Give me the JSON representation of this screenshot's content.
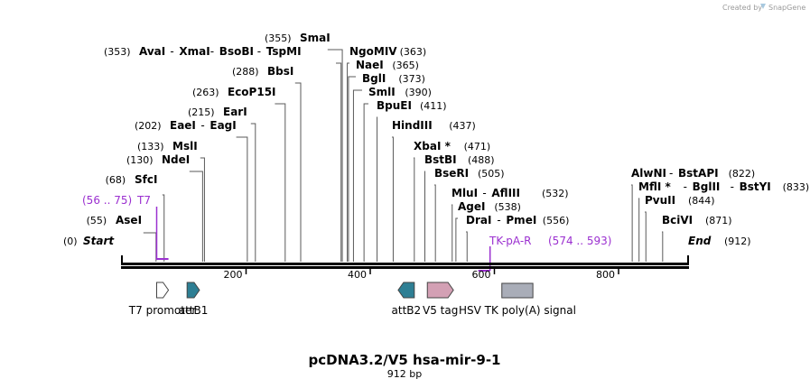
{
  "credit": {
    "prefix": "Created by",
    "brand": "SnapGene"
  },
  "map": {
    "title": "pcDNA3.2/V5 hsa-mir-9-1",
    "length_label": "912 bp",
    "length": 912,
    "start": {
      "label": "Start",
      "pos": "(0)"
    },
    "end": {
      "label": "End",
      "pos": "(912)"
    },
    "ticks": [
      "200",
      "400",
      "600",
      "800"
    ],
    "tick_values": [
      200,
      400,
      600,
      800
    ]
  },
  "sites": [
    {
      "id": "ase",
      "pos": 55,
      "pos_label": "(55)",
      "names": [
        "AseI"
      ],
      "side": "left"
    },
    {
      "id": "sfc",
      "pos": 68,
      "pos_label": "(68)",
      "names": [
        "SfcI"
      ],
      "side": "left"
    },
    {
      "id": "nde",
      "pos": 130,
      "pos_label": "(130)",
      "names": [
        "NdeI"
      ],
      "side": "left"
    },
    {
      "id": "msl",
      "pos": 133,
      "pos_label": "(133)",
      "names": [
        "MslI"
      ],
      "side": "left"
    },
    {
      "id": "eae",
      "pos": 202,
      "pos_label": "(202)",
      "names": [
        "EaeI",
        "EagI"
      ],
      "side": "left"
    },
    {
      "id": "ear",
      "pos": 215,
      "pos_label": "(215)",
      "names": [
        "EarI"
      ],
      "side": "left"
    },
    {
      "id": "ecop",
      "pos": 263,
      "pos_label": "(263)",
      "names": [
        "EcoP15I"
      ],
      "side": "left"
    },
    {
      "id": "bbs",
      "pos": 288,
      "pos_label": "(288)",
      "names": [
        "BbsI"
      ],
      "side": "left"
    },
    {
      "id": "ava",
      "pos": 353,
      "pos_label": "(353)",
      "names": [
        "AvaI",
        "XmaI",
        "BsoBI",
        "TspMI"
      ],
      "side": "left"
    },
    {
      "id": "sma",
      "pos": 355,
      "pos_label": "(355)",
      "names": [
        "SmaI"
      ],
      "side": "left"
    },
    {
      "id": "ngo",
      "pos": 363,
      "pos_label": "(363)",
      "names": [
        "NgoMIV"
      ],
      "side": "right"
    },
    {
      "id": "nae",
      "pos": 365,
      "pos_label": "(365)",
      "names": [
        "NaeI"
      ],
      "side": "right"
    },
    {
      "id": "bgl1",
      "pos": 373,
      "pos_label": "(373)",
      "names": [
        "BglI"
      ],
      "side": "right"
    },
    {
      "id": "sml",
      "pos": 390,
      "pos_label": "(390)",
      "names": [
        "SmlI"
      ],
      "side": "right"
    },
    {
      "id": "bpue",
      "pos": 411,
      "pos_label": "(411)",
      "names": [
        "BpuEI"
      ],
      "side": "right"
    },
    {
      "id": "hind",
      "pos": 437,
      "pos_label": "(437)",
      "names": [
        "HindIII"
      ],
      "side": "right"
    },
    {
      "id": "xba",
      "pos": 471,
      "pos_label": "(471)",
      "names": [
        "XbaI *"
      ],
      "side": "right"
    },
    {
      "id": "bstbi",
      "pos": 488,
      "pos_label": "(488)",
      "names": [
        "BstBI"
      ],
      "side": "right"
    },
    {
      "id": "bseri",
      "pos": 505,
      "pos_label": "(505)",
      "names": [
        "BseRI"
      ],
      "side": "right"
    },
    {
      "id": "mlu",
      "pos": 532,
      "pos_label": "(532)",
      "names": [
        "MluI",
        "AflIII"
      ],
      "side": "right"
    },
    {
      "id": "age",
      "pos": 538,
      "pos_label": "(538)",
      "names": [
        "AgeI"
      ],
      "side": "right"
    },
    {
      "id": "dra",
      "pos": 556,
      "pos_label": "(556)",
      "names": [
        "DraI",
        "PmeI"
      ],
      "side": "right"
    },
    {
      "id": "alwn",
      "pos": 822,
      "pos_label": "(822)",
      "names": [
        "AlwNI",
        "BstAPI"
      ],
      "side": "right"
    },
    {
      "id": "mfl",
      "pos": 833,
      "pos_label": "(833)",
      "names": [
        "MflI *",
        "BglII",
        "BstYI"
      ],
      "side": "right"
    },
    {
      "id": "pvu",
      "pos": 844,
      "pos_label": "(844)",
      "names": [
        "PvuII"
      ],
      "side": "right"
    },
    {
      "id": "bci",
      "pos": 871,
      "pos_label": "(871)",
      "names": [
        "BciVI"
      ],
      "side": "right"
    }
  ],
  "primers": [
    {
      "id": "t7",
      "name": "T7",
      "range": "(56 .. 75)",
      "start": 56,
      "end": 75,
      "side": "left"
    },
    {
      "id": "tkpa",
      "name": "TK-pA-R",
      "range": "(574 .. 593)",
      "start": 574,
      "end": 593,
      "side": "right"
    }
  ],
  "features": [
    {
      "id": "t7-promoter",
      "name": "T7 promoter",
      "start": 56,
      "end": 75,
      "dir": "right",
      "color": "#ffffff"
    },
    {
      "id": "attb1",
      "name": "attB1",
      "start": 105,
      "end": 125,
      "dir": "right",
      "color": "#2e7f94"
    },
    {
      "id": "attb2",
      "name": "attB2",
      "start": 445,
      "end": 471,
      "dir": "left",
      "color": "#2e7f94"
    },
    {
      "id": "v5-tag",
      "name": "V5 tag",
      "start": 492,
      "end": 534,
      "dir": "right",
      "color": "#d3a0b4"
    },
    {
      "id": "hsv-tk",
      "name": "HSV TK poly(A) signal",
      "start": 612,
      "end": 662,
      "dir": "none",
      "color": "#a9adb8"
    }
  ]
}
